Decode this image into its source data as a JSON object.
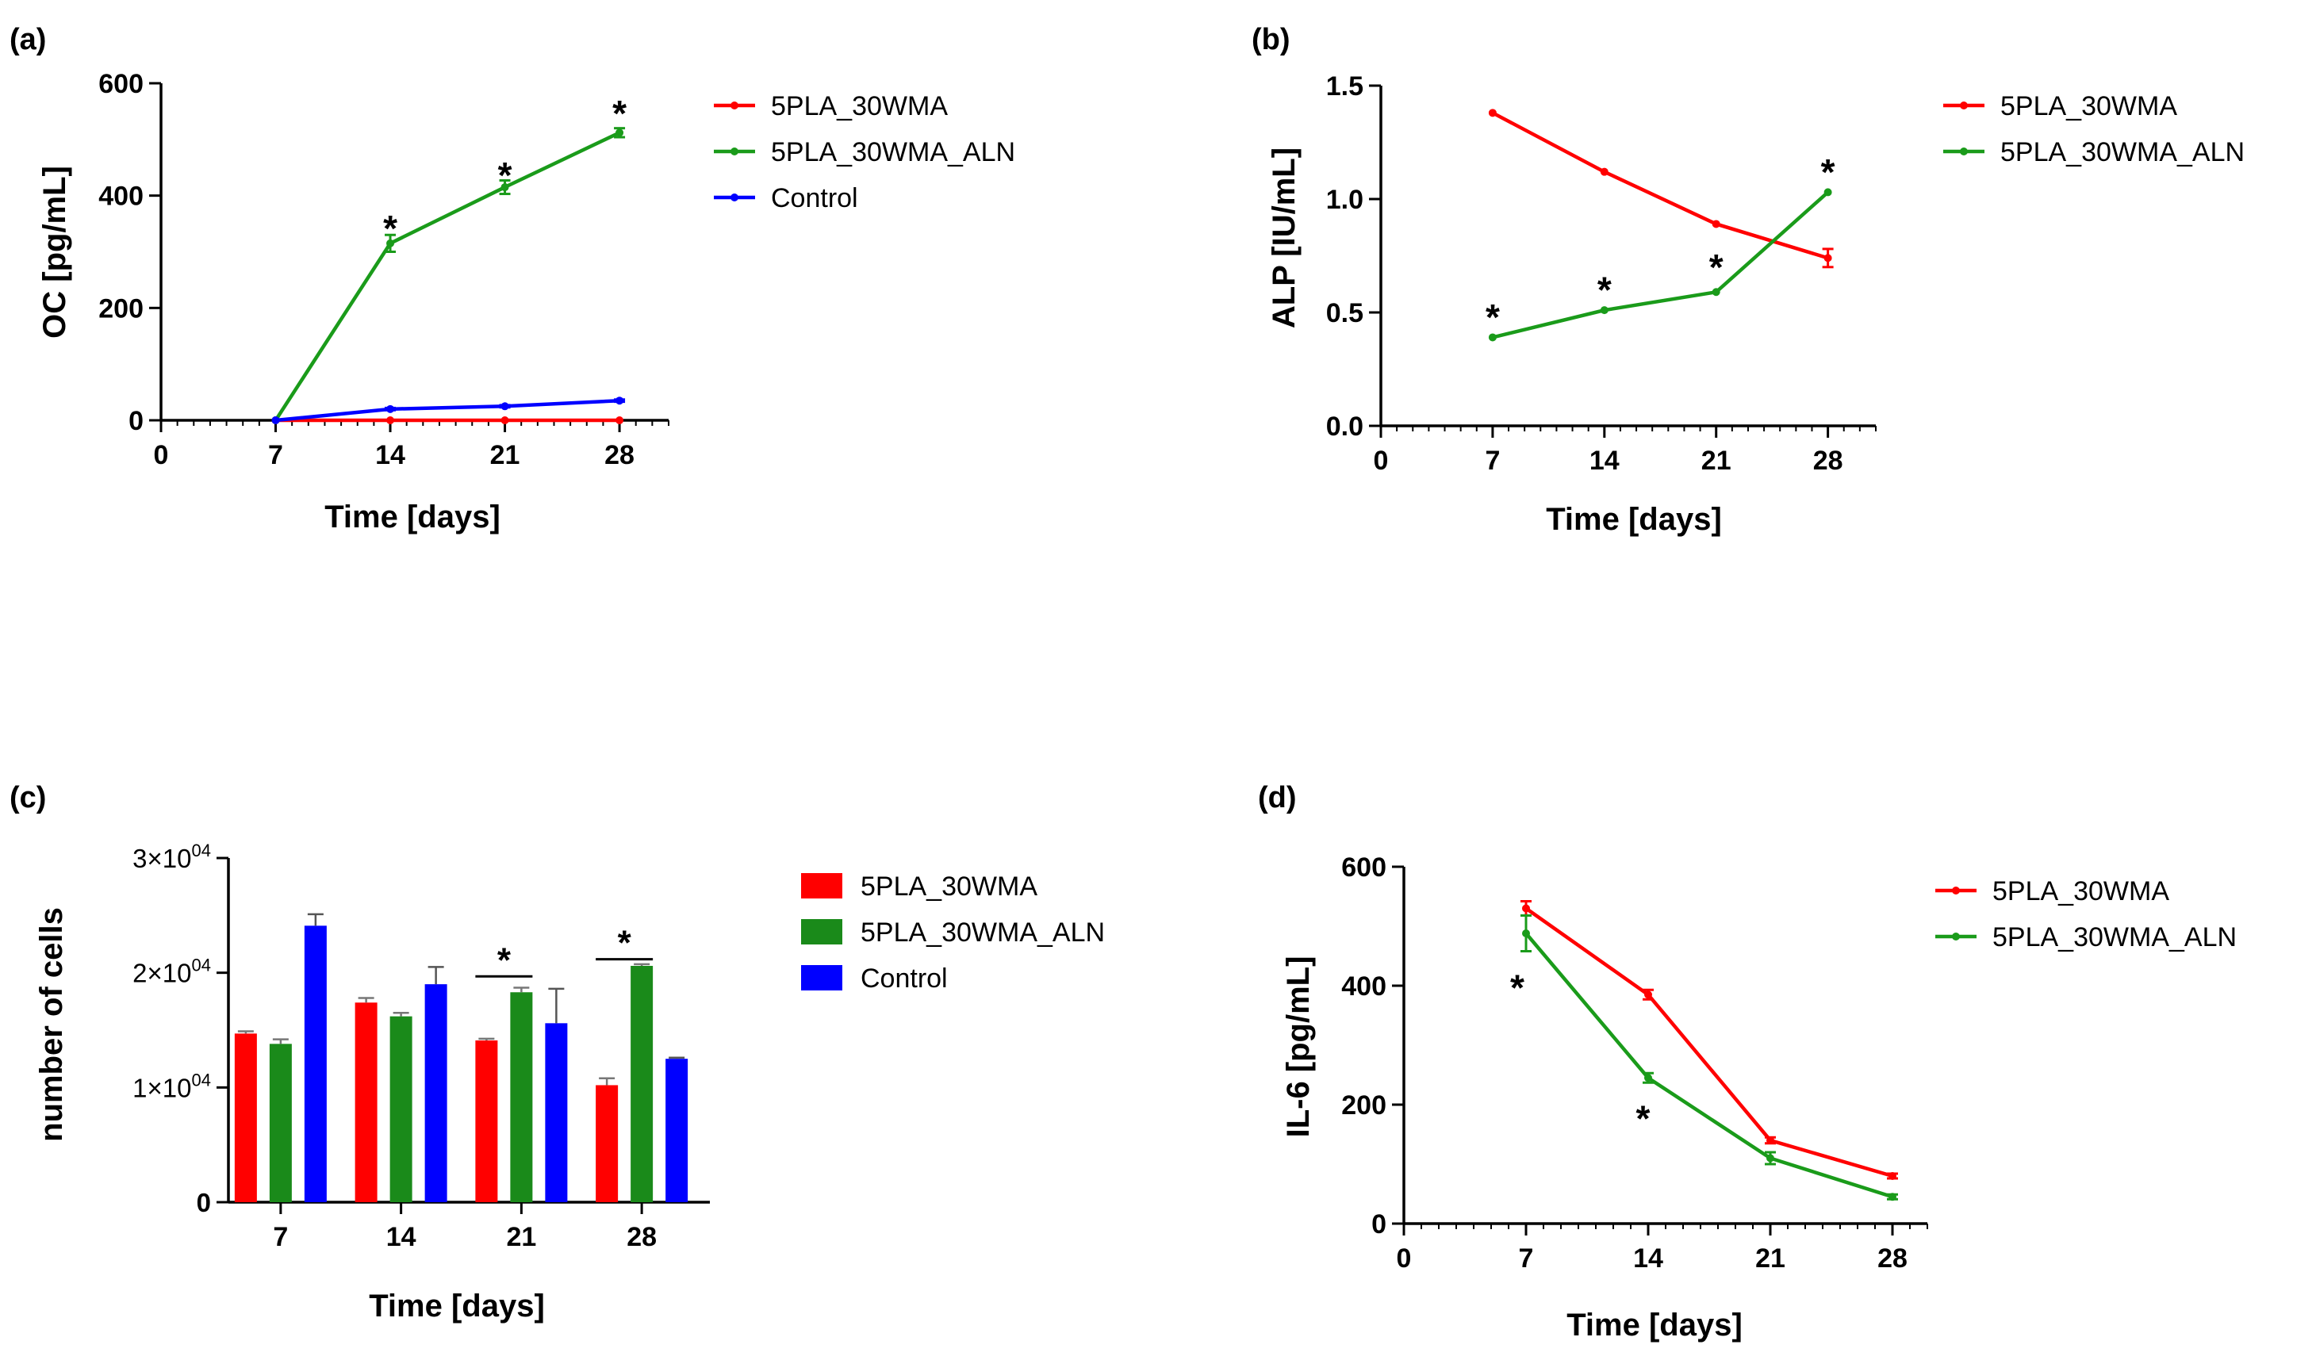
{
  "chart_data": [
    {
      "id": "a",
      "panel_label": "(a)",
      "type": "line",
      "xlabel": "Time [days]",
      "ylabel": "OC [pg/mL]",
      "xlim": [
        0,
        31
      ],
      "ylim": [
        0,
        600
      ],
      "x_ticks": [
        "0",
        "7",
        "14",
        "21",
        "28"
      ],
      "y_ticks": [
        "0",
        "200",
        "400",
        "600"
      ],
      "legend": "right",
      "series": [
        {
          "name": "5PLA_30WMA",
          "color": "#ff0000",
          "x": [
            7,
            14,
            21,
            28
          ],
          "values": [
            0,
            0,
            0,
            0
          ],
          "err": [
            0,
            0,
            0,
            0
          ]
        },
        {
          "name": "5PLA_30WMA_ALN",
          "color": "#1a9b1a",
          "x": [
            7,
            14,
            21,
            28
          ],
          "values": [
            0,
            315,
            415,
            512
          ],
          "err": [
            0,
            15,
            12,
            8
          ]
        },
        {
          "name": "Control",
          "color": "#0000ff",
          "x": [
            7,
            14,
            21,
            28
          ],
          "values": [
            0,
            20,
            25,
            35
          ],
          "err": [
            0,
            2,
            2,
            2
          ]
        }
      ],
      "annotations": [
        {
          "text": "*",
          "x": 14,
          "y": 350
        },
        {
          "text": "*",
          "x": 21,
          "y": 445
        },
        {
          "text": "*",
          "x": 28,
          "y": 555
        }
      ]
    },
    {
      "id": "b",
      "panel_label": "(b)",
      "type": "line",
      "xlabel": "Time [days]",
      "ylabel": "ALP [IU/mL]",
      "xlim": [
        0,
        31
      ],
      "ylim": [
        0,
        1.5
      ],
      "x_ticks": [
        "0",
        "7",
        "14",
        "21",
        "28"
      ],
      "y_ticks": [
        "0.0",
        "0.5",
        "1.0",
        "1.5"
      ],
      "legend": "right",
      "series": [
        {
          "name": "5PLA_30WMA",
          "color": "#ff0000",
          "x": [
            7,
            14,
            21,
            28
          ],
          "values": [
            1.38,
            1.12,
            0.89,
            0.74
          ],
          "err": [
            0,
            0,
            0,
            0.04
          ]
        },
        {
          "name": "5PLA_30WMA_ALN",
          "color": "#1a9b1a",
          "x": [
            7,
            14,
            21,
            28
          ],
          "values": [
            0.39,
            0.51,
            0.59,
            1.03
          ],
          "err": [
            0,
            0,
            0,
            0
          ]
        }
      ],
      "annotations": [
        {
          "text": "*",
          "x": 7,
          "y": 0.5
        },
        {
          "text": "*",
          "x": 14,
          "y": 0.62
        },
        {
          "text": "*",
          "x": 21,
          "y": 0.72
        },
        {
          "text": "*",
          "x": 28,
          "y": 1.14
        }
      ]
    },
    {
      "id": "c",
      "panel_label": "(c)",
      "type": "bar",
      "xlabel": "Time [days]",
      "ylabel": "number of cells",
      "ylim": [
        0,
        30000
      ],
      "categories": [
        "7",
        "14",
        "21",
        "28"
      ],
      "y_ticks": [
        {
          "value": 0,
          "mantissa": "0",
          "base": "",
          "exp": ""
        },
        {
          "value": 10000,
          "mantissa": "1",
          "base": "×10",
          "exp": "04"
        },
        {
          "value": 20000,
          "mantissa": "2",
          "base": "×10",
          "exp": "04"
        },
        {
          "value": 30000,
          "mantissa": "3",
          "base": "×10",
          "exp": "04"
        }
      ],
      "legend": "right",
      "series": [
        {
          "name": "5PLA_30WMA",
          "color": "#ff0000",
          "values": [
            14700,
            17400,
            14100,
            10200
          ],
          "err": [
            200,
            400,
            150,
            600
          ]
        },
        {
          "name": "5PLA_30WMA_ALN",
          "color": "#1a8a1a",
          "values": [
            13800,
            16200,
            18300,
            20600
          ],
          "err": [
            400,
            300,
            400,
            150
          ]
        },
        {
          "name": "Control",
          "color": "#0000ff",
          "values": [
            24100,
            19000,
            15600,
            12500
          ],
          "err": [
            1000,
            1500,
            3000,
            100
          ]
        }
      ],
      "annotations": [
        {
          "text": "*",
          "category": "21",
          "y": 21200
        },
        {
          "text": "*",
          "category": "28",
          "y": 22700
        }
      ]
    },
    {
      "id": "d",
      "panel_label": "(d)",
      "type": "line",
      "xlabel": "Time [days]",
      "ylabel": "IL-6 [pg/mL]",
      "xlim": [
        0,
        30
      ],
      "ylim": [
        0,
        600
      ],
      "x_ticks": [
        "0",
        "7",
        "14",
        "21",
        "28"
      ],
      "y_ticks": [
        "0",
        "200",
        "400",
        "600"
      ],
      "legend": "right",
      "series": [
        {
          "name": "5PLA_30WMA",
          "color": "#ff0000",
          "x": [
            7,
            14,
            21,
            28
          ],
          "values": [
            530,
            385,
            140,
            80
          ],
          "err": [
            12,
            8,
            5,
            4
          ]
        },
        {
          "name": "5PLA_30WMA_ALN",
          "color": "#1a9b1a",
          "x": [
            7,
            14,
            21,
            28
          ],
          "values": [
            488,
            245,
            110,
            45
          ],
          "err": [
            30,
            8,
            10,
            4
          ]
        }
      ],
      "annotations": [
        {
          "text": "*",
          "x": 6.5,
          "y": 405
        },
        {
          "text": "*",
          "x": 13.7,
          "y": 185
        }
      ]
    }
  ]
}
